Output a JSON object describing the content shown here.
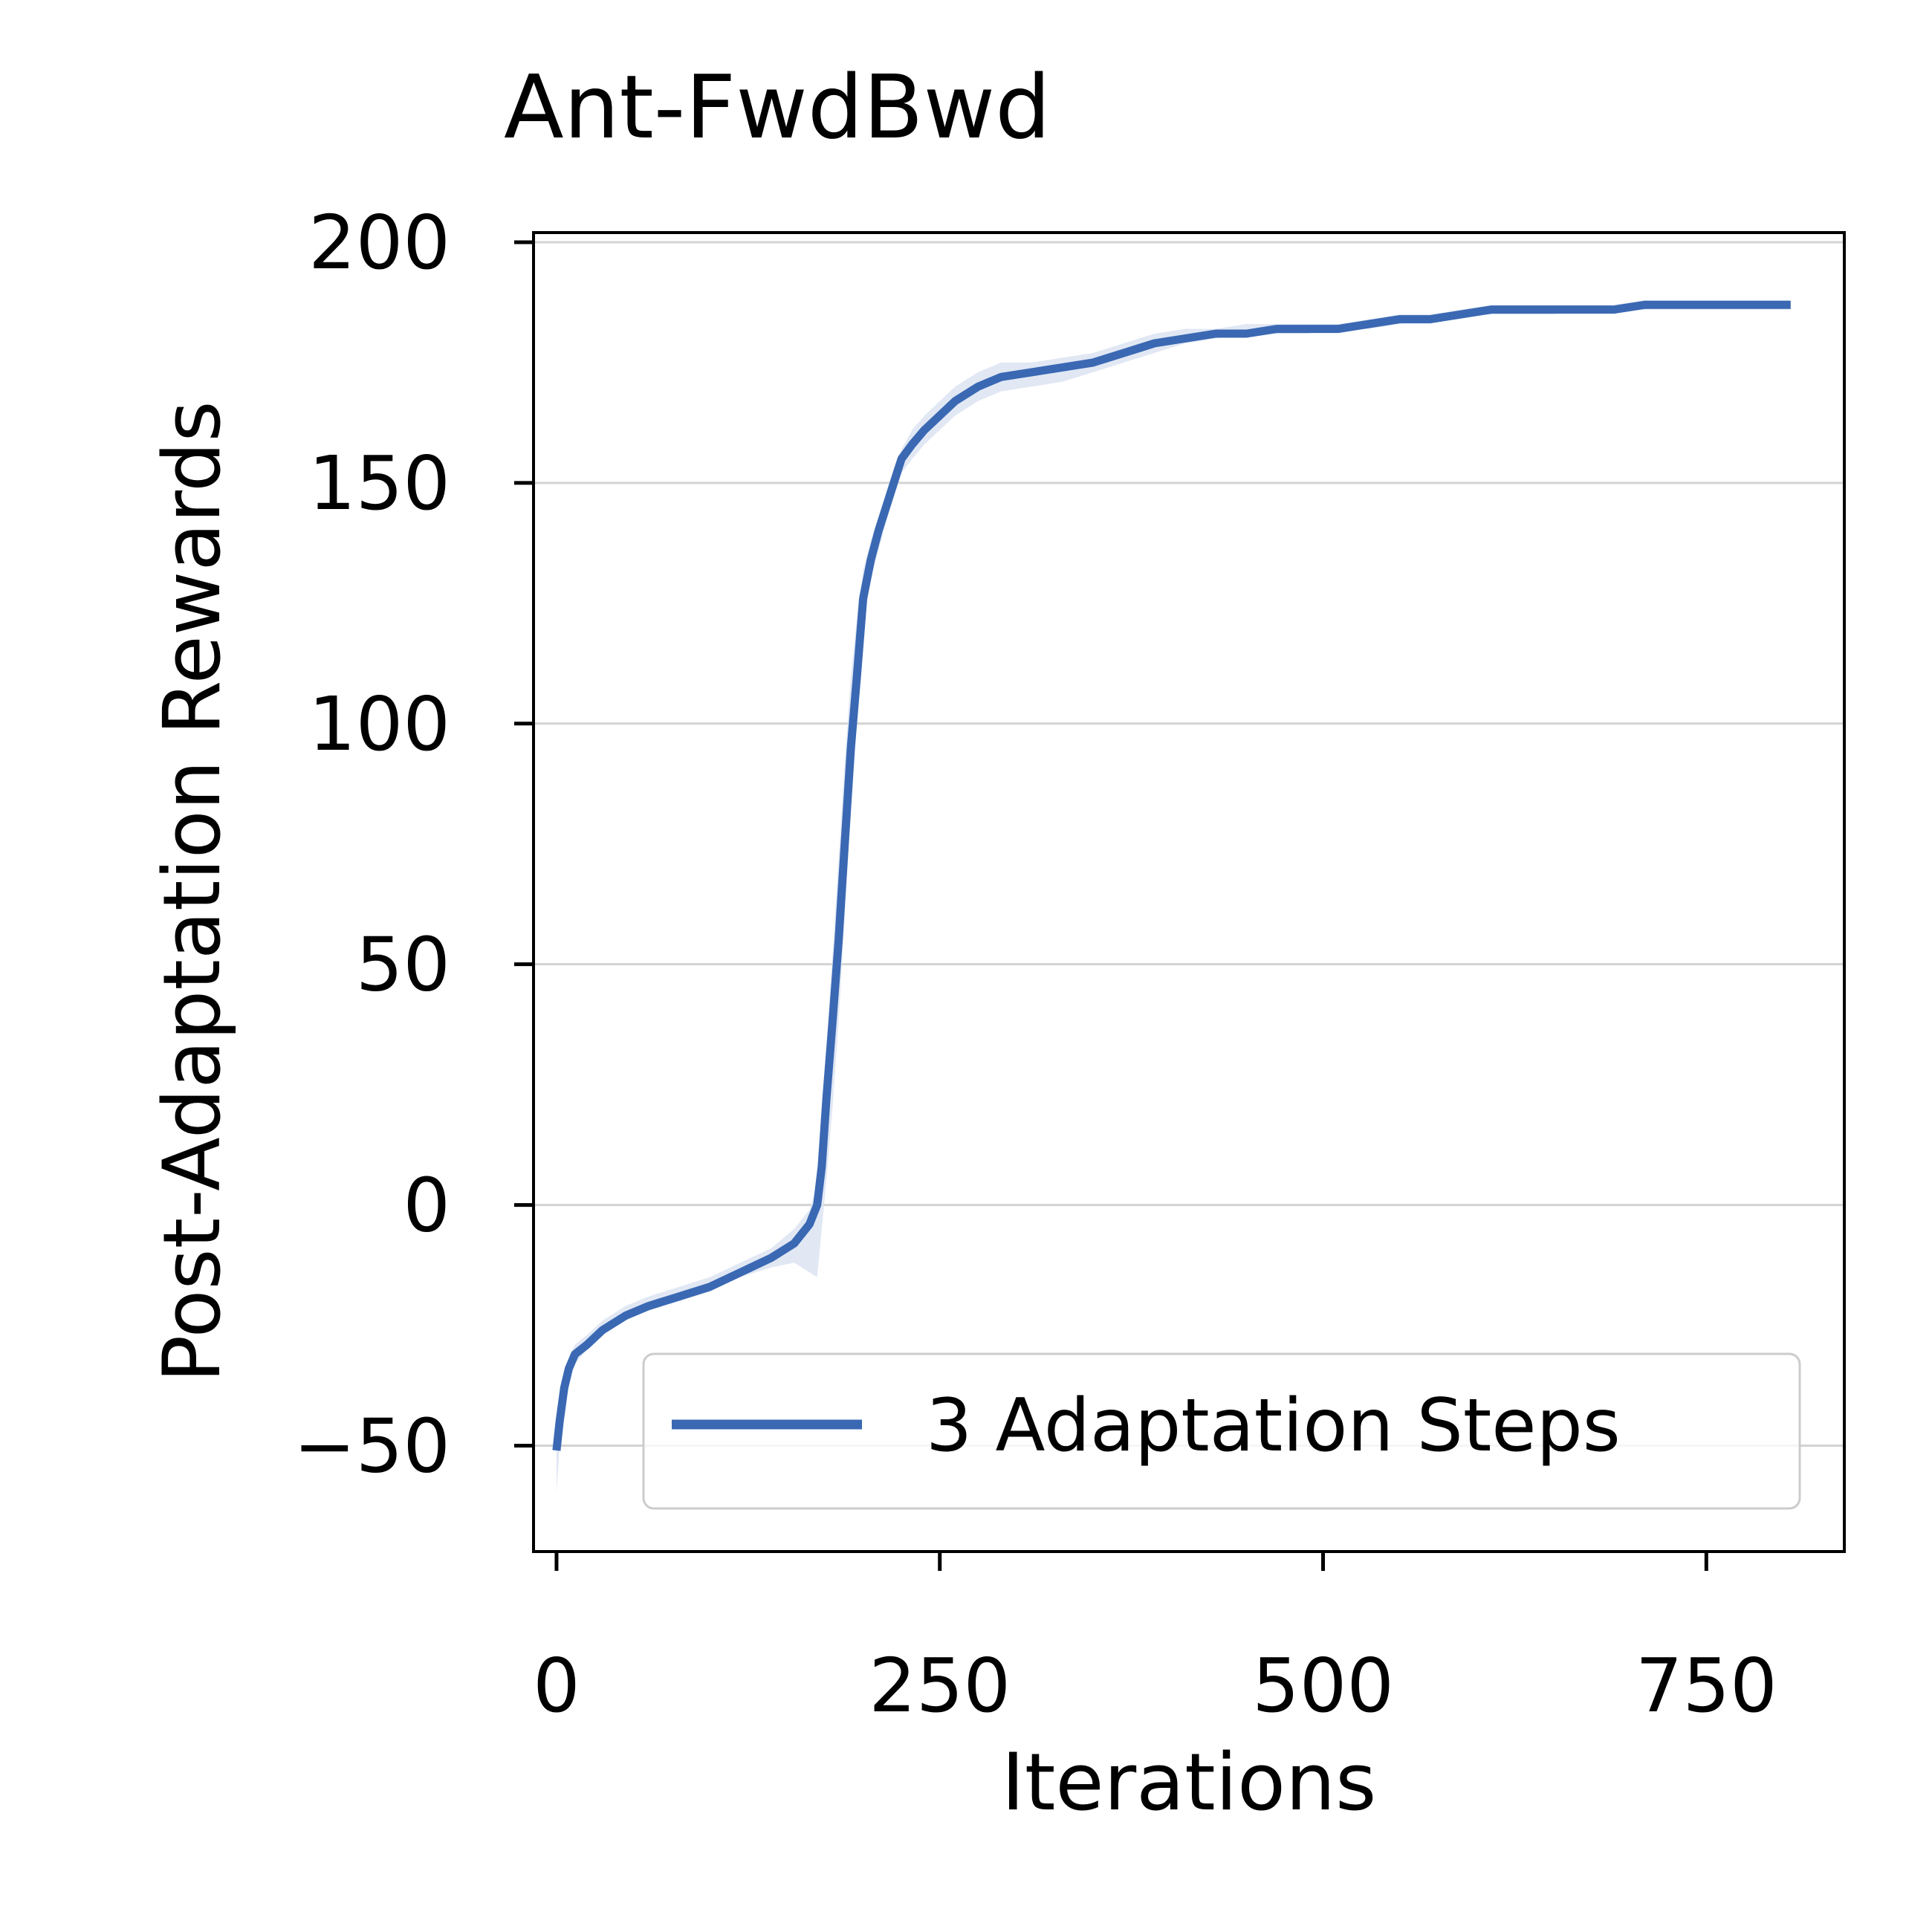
{
  "chart_data": {
    "type": "line",
    "title": "Ant-FwdBwd",
    "xlabel": "Iterations",
    "ylabel": "Post-Adaptation Rewards",
    "xlim": [
      -15,
      840
    ],
    "ylim": [
      -72,
      202
    ],
    "xticks": [
      0,
      250,
      500,
      750
    ],
    "xtick_labels": [
      "0",
      "250",
      "500",
      "750"
    ],
    "yticks": [
      -50,
      0,
      50,
      100,
      150,
      200
    ],
    "ytick_labels": [
      "−50",
      "0",
      "50",
      "100",
      "150",
      "200"
    ],
    "grid": "horizontal",
    "legend_position": "lower-right",
    "colors": {
      "line": "#3A68B3",
      "band": "#DCE4F2",
      "grid": "#D3D3D3",
      "axes": "#000000"
    },
    "series": [
      {
        "name": "3 Adaptation Steps",
        "x": [
          0,
          2,
          5,
          8,
          12,
          20,
          30,
          45,
          60,
          80,
          100,
          120,
          140,
          155,
          165,
          170,
          173,
          176,
          180,
          184,
          188,
          192,
          196,
          200,
          205,
          210,
          215,
          220,
          225,
          232,
          240,
          250,
          260,
          275,
          290,
          310,
          330,
          350,
          370,
          390,
          410,
          430,
          450,
          470,
          490,
          510,
          530,
          550,
          570,
          590,
          610,
          630,
          650,
          670,
          690,
          710,
          730,
          750,
          770,
          790,
          805
        ],
        "y": [
          -51,
          -45,
          -38,
          -34,
          -31,
          -29,
          -26,
          -23,
          -21,
          -19,
          -17,
          -14,
          -11,
          -8,
          -4,
          0,
          8,
          22,
          38,
          55,
          75,
          95,
          110,
          126,
          134,
          140,
          145,
          150,
          155,
          158,
          161,
          164,
          167,
          170,
          172,
          173,
          174,
          175,
          177,
          179,
          180,
          181,
          181,
          182,
          182,
          182,
          183,
          184,
          184,
          185,
          186,
          186,
          186,
          186,
          186,
          187,
          187,
          187,
          187,
          187,
          187
        ],
        "lower": [
          -60,
          -50,
          -40,
          -36,
          -33,
          -30,
          -27,
          -24,
          -22,
          -20,
          -18,
          -15,
          -13,
          -12,
          -14,
          -15,
          -5,
          5,
          20,
          38,
          60,
          82,
          100,
          120,
          130,
          136,
          142,
          147,
          152,
          155,
          158,
          161,
          164,
          167,
          169,
          170,
          171,
          173,
          175,
          177,
          179,
          180,
          181,
          181,
          181,
          182,
          182,
          183,
          184,
          185,
          185,
          185,
          185,
          186,
          186,
          186,
          186,
          186,
          186,
          186,
          186
        ],
        "upper": [
          -44,
          -40,
          -35,
          -32,
          -29,
          -27,
          -24,
          -21,
          -19,
          -17,
          -15,
          -12,
          -9,
          -5,
          -1,
          4,
          15,
          32,
          52,
          72,
          92,
          110,
          122,
          132,
          138,
          143,
          148,
          153,
          157,
          161,
          164,
          167,
          170,
          173,
          175,
          175,
          176,
          177,
          179,
          181,
          182,
          182,
          183,
          183,
          183,
          183,
          184,
          185,
          185,
          186,
          187,
          187,
          187,
          187,
          187,
          188,
          188,
          188,
          188,
          188,
          188
        ]
      }
    ]
  }
}
